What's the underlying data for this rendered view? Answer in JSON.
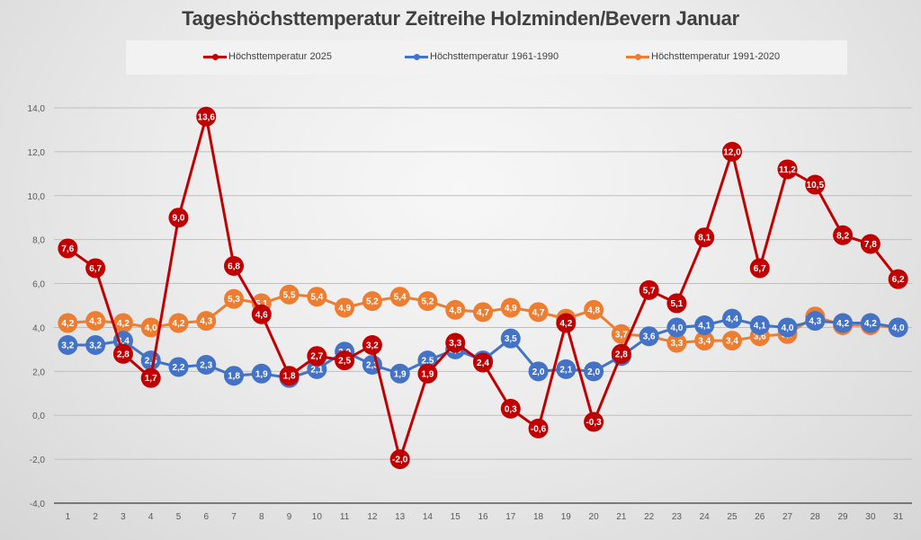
{
  "chart_data": {
    "type": "line",
    "title": "Tageshöchsttemperatur Zeitreihe Holzminden/Bevern Januar",
    "xlabel": "",
    "ylabel": "",
    "ylim": [
      -4.0,
      14.0
    ],
    "ytick_step": 2.0,
    "yticks": [
      "-4,0",
      "-2,0",
      "0,0",
      "2,0",
      "4,0",
      "6,0",
      "8,0",
      "10,0",
      "12,0",
      "14,0"
    ],
    "grid": true,
    "legend_position": "top",
    "x": [
      "1",
      "2",
      "3",
      "4",
      "5",
      "6",
      "7",
      "8",
      "9",
      "10",
      "11",
      "12",
      "13",
      "14",
      "15",
      "16",
      "17",
      "18",
      "19",
      "20",
      "21",
      "22",
      "23",
      "24",
      "25",
      "26",
      "27",
      "28",
      "29",
      "30",
      "31"
    ],
    "series": [
      {
        "name": "Höchsttemperatur 1991-2020",
        "color": "#ED7D31",
        "values": [
          4.2,
          4.3,
          4.2,
          4.0,
          4.2,
          4.3,
          5.3,
          5.1,
          5.5,
          5.4,
          4.9,
          5.2,
          5.4,
          5.2,
          4.8,
          4.7,
          4.9,
          4.7,
          4.4,
          4.8,
          3.7,
          3.6,
          3.3,
          3.4,
          3.4,
          3.6,
          3.7,
          4.5,
          4.1,
          4.1,
          4.0
        ]
      },
      {
        "name": "Höchsttemperatur 1961-1990",
        "color": "#4472C4",
        "values": [
          3.2,
          3.2,
          3.4,
          2.5,
          2.2,
          2.3,
          1.8,
          1.9,
          1.7,
          2.1,
          2.9,
          2.3,
          1.9,
          2.5,
          3.0,
          2.5,
          3.5,
          2.0,
          2.1,
          2.0,
          2.7,
          3.6,
          4.0,
          4.1,
          4.4,
          4.1,
          4.0,
          4.3,
          4.2,
          4.2,
          4.0
        ]
      },
      {
        "name": "Höchsttemperatur 2025",
        "color": "#C00000",
        "values": [
          7.6,
          6.7,
          2.8,
          1.7,
          9.0,
          13.6,
          6.8,
          4.6,
          1.8,
          2.7,
          2.5,
          3.2,
          -2.0,
          1.9,
          3.3,
          2.4,
          0.3,
          -0.6,
          4.2,
          -0.3,
          2.8,
          5.7,
          5.1,
          8.1,
          12.0,
          6.7,
          11.2,
          10.5,
          8.2,
          7.8,
          6.2
        ]
      }
    ],
    "legend_order": [
      2,
      1,
      0
    ]
  }
}
